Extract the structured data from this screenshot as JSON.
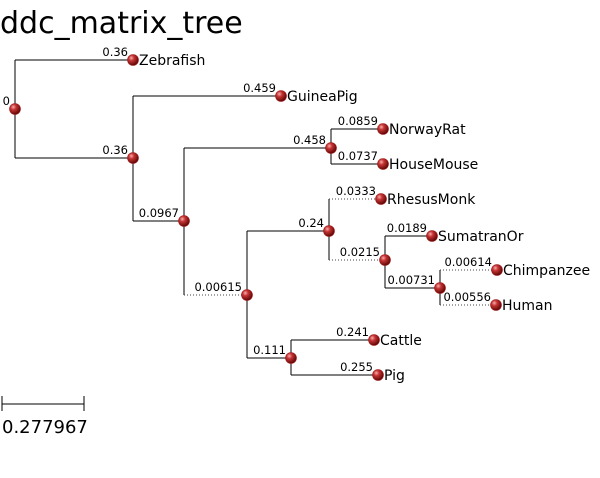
{
  "title": "ddc_matrix_tree",
  "scale_bar": {
    "label": "0.277967"
  },
  "node_color": "#a01818",
  "tree": {
    "id": "root",
    "len": "0",
    "children": [
      {
        "id": "zebrafish",
        "len": "0.36",
        "label": "Zebrafish"
      },
      {
        "id": "n1",
        "len": "0.36",
        "children": [
          {
            "id": "guineapig",
            "len": "0.459",
            "label": "GuineaPig"
          },
          {
            "id": "n2",
            "len": "0.0967",
            "children": [
              {
                "id": "n3",
                "len": "0.458",
                "children": [
                  {
                    "id": "norwayrat",
                    "len": "0.0859",
                    "label": "NorwayRat"
                  },
                  {
                    "id": "housemouse",
                    "len": "0.0737",
                    "label": "HouseMouse"
                  }
                ]
              },
              {
                "id": "n4",
                "len": "0.00615",
                "children": [
                  {
                    "id": "n5",
                    "len": "0.24",
                    "children": [
                      {
                        "id": "rhesusmonk",
                        "len": "0.0333",
                        "label": "RhesusMonk"
                      },
                      {
                        "id": "n6",
                        "len": "0.0215",
                        "children": [
                          {
                            "id": "sumatranor",
                            "len": "0.0189",
                            "label": "SumatranOr"
                          },
                          {
                            "id": "n7",
                            "len": "0.00731",
                            "children": [
                              {
                                "id": "chimpanzee",
                                "len": "0.00614",
                                "label": "Chimpanzee"
                              },
                              {
                                "id": "human",
                                "len": "0.00556",
                                "label": "Human"
                              }
                            ]
                          }
                        ]
                      }
                    ]
                  },
                  {
                    "id": "n8",
                    "len": "0.111",
                    "children": [
                      {
                        "id": "cattle",
                        "len": "0.241",
                        "label": "Cattle"
                      },
                      {
                        "id": "pig",
                        "len": "0.255",
                        "label": "Pig"
                      }
                    ]
                  }
                ]
              }
            ]
          }
        ]
      }
    ]
  }
}
